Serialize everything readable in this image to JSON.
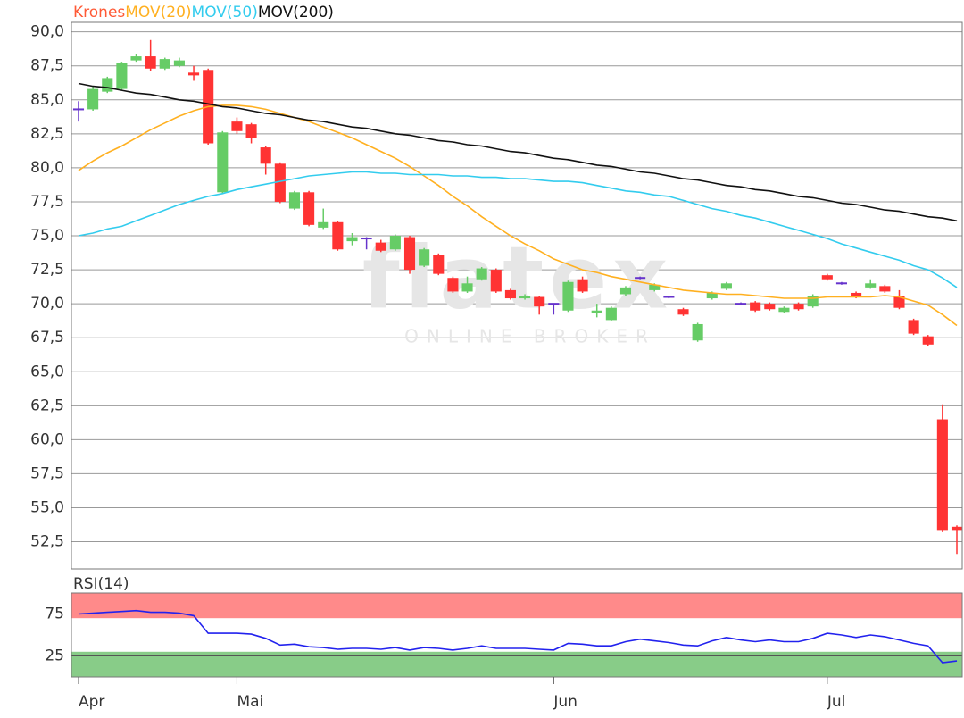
{
  "chart_data": [
    {
      "type": "candlestick",
      "watermark": {
        "logo": "flatex",
        "tagline": "ONLINE BROKER"
      },
      "categories": [
        "Apr",
        null,
        null,
        null,
        null,
        null,
        null,
        null,
        null,
        null,
        null,
        "Mai",
        null,
        null,
        null,
        null,
        null,
        null,
        null,
        null,
        null,
        null,
        null,
        null,
        null,
        null,
        null,
        null,
        null,
        null,
        null,
        null,
        null,
        "Jun",
        null,
        null,
        null,
        null,
        null,
        null,
        null,
        null,
        null,
        null,
        null,
        null,
        null,
        null,
        null,
        null,
        null,
        null,
        "Jul",
        null,
        null,
        null,
        null,
        null,
        null,
        null,
        null,
        null
      ],
      "ylim": [
        50.5,
        90.7
      ],
      "yticks": [
        {
          "value": 52.5,
          "label": "52,5"
        },
        {
          "value": 55,
          "label": "55,0"
        },
        {
          "value": 57.5,
          "label": "57,5"
        },
        {
          "value": 60,
          "label": "60,0"
        },
        {
          "value": 62.5,
          "label": "62,5"
        },
        {
          "value": 65,
          "label": "65,0"
        },
        {
          "value": 67.5,
          "label": "67,5"
        },
        {
          "value": 70,
          "label": "70,0"
        },
        {
          "value": 72.5,
          "label": "72,5"
        },
        {
          "value": 75,
          "label": "75,0"
        },
        {
          "value": 77.5,
          "label": "77,5"
        },
        {
          "value": 80,
          "label": "80,0"
        },
        {
          "value": 82.5,
          "label": "82,5"
        },
        {
          "value": 85,
          "label": "85,0"
        },
        {
          "value": 87.5,
          "label": "87,5"
        },
        {
          "value": 90,
          "label": "90,0"
        }
      ],
      "grid": true,
      "up_color": "#66cc66",
      "down_color": "#ff3333",
      "doji_color": "#6633cc",
      "series": [
        {
          "name": "Krones",
          "color": "#ff5a36",
          "open": [
            84.3,
            84.3,
            85.6,
            85.8,
            87.9,
            88.2,
            87.3,
            87.5,
            87.0,
            87.2,
            78.2,
            83.4,
            83.2,
            81.5,
            80.3,
            77.0,
            78.2,
            75.6,
            76.0,
            74.6,
            74.8,
            74.5,
            74.0,
            74.9,
            72.8,
            73.6,
            71.9,
            70.9,
            71.8,
            72.5,
            71.0,
            70.4,
            70.5,
            70.0,
            69.5,
            71.8,
            69.3,
            68.8,
            70.7,
            71.9,
            71.0,
            70.5,
            69.6,
            67.3,
            70.4,
            71.1,
            70.0,
            70.1,
            70.0,
            69.4,
            70.0,
            69.8,
            72.1,
            71.5,
            70.8,
            71.2,
            71.3,
            70.6,
            68.8,
            67.6,
            61.5,
            53.6
          ],
          "high": [
            84.9,
            86.0,
            86.7,
            87.8,
            88.4,
            89.4,
            88.1,
            88.1,
            87.5,
            87.3,
            82.7,
            83.7,
            83.3,
            81.6,
            80.4,
            78.3,
            78.3,
            77.0,
            76.1,
            75.2,
            74.9,
            74.7,
            75.1,
            75.0,
            74.1,
            73.7,
            72.0,
            72.0,
            72.7,
            72.6,
            71.1,
            70.7,
            70.6,
            70.0,
            71.7,
            72.0,
            70.0,
            69.8,
            71.3,
            72.0,
            71.5,
            70.6,
            69.7,
            68.6,
            70.9,
            71.6,
            70.1,
            70.2,
            70.1,
            69.8,
            70.1,
            70.7,
            72.2,
            71.6,
            70.9,
            71.8,
            71.4,
            71.0,
            68.9,
            67.7,
            62.6,
            53.7
          ],
          "low": [
            83.4,
            84.2,
            85.5,
            85.7,
            87.8,
            87.1,
            87.2,
            87.4,
            86.4,
            81.7,
            78.1,
            82.5,
            81.8,
            79.5,
            77.4,
            76.9,
            75.7,
            75.5,
            73.9,
            74.3,
            74.0,
            73.8,
            73.9,
            72.2,
            72.7,
            72.1,
            70.8,
            70.8,
            71.7,
            70.8,
            70.3,
            70.3,
            69.2,
            69.2,
            69.4,
            70.8,
            69.0,
            68.7,
            70.6,
            71.8,
            70.9,
            70.4,
            69.1,
            67.2,
            70.3,
            71.0,
            69.9,
            69.4,
            69.5,
            69.3,
            69.5,
            69.7,
            71.7,
            71.4,
            70.4,
            71.1,
            70.8,
            69.6,
            67.7,
            66.9,
            53.2,
            51.6
          ],
          "close": [
            84.3,
            85.8,
            86.6,
            87.7,
            88.2,
            87.3,
            88.0,
            87.9,
            86.8,
            81.8,
            82.6,
            82.7,
            82.2,
            80.3,
            77.5,
            78.2,
            75.8,
            76.0,
            74.0,
            74.9,
            74.8,
            73.9,
            75.0,
            72.5,
            74.0,
            72.2,
            70.9,
            71.5,
            72.6,
            70.9,
            70.4,
            70.6,
            69.8,
            70.0,
            71.6,
            70.9,
            69.5,
            69.7,
            71.2,
            71.9,
            71.4,
            70.5,
            69.2,
            68.5,
            70.8,
            71.5,
            70.0,
            69.5,
            69.6,
            69.7,
            69.6,
            70.6,
            71.8,
            71.5,
            70.5,
            71.5,
            70.9,
            69.7,
            67.8,
            67.0,
            53.3,
            53.3
          ]
        },
        {
          "name": "MOV(20)",
          "color": "#ffb020",
          "values": [
            79.8,
            80.5,
            81.1,
            81.6,
            82.2,
            82.8,
            83.3,
            83.8,
            84.2,
            84.5,
            84.6,
            84.6,
            84.5,
            84.3,
            84.0,
            83.7,
            83.4,
            83.0,
            82.6,
            82.2,
            81.7,
            81.2,
            80.7,
            80.1,
            79.4,
            78.7,
            77.9,
            77.2,
            76.4,
            75.7,
            75.0,
            74.4,
            73.9,
            73.3,
            72.9,
            72.5,
            72.3,
            72.0,
            71.8,
            71.6,
            71.4,
            71.2,
            71.0,
            70.9,
            70.8,
            70.7,
            70.7,
            70.6,
            70.5,
            70.4,
            70.4,
            70.4,
            70.5,
            70.5,
            70.5,
            70.5,
            70.6,
            70.5,
            70.2,
            69.9,
            69.2,
            68.4
          ]
        },
        {
          "name": "MOV(50)",
          "color": "#33ccee",
          "values": [
            75.0,
            75.2,
            75.5,
            75.7,
            76.1,
            76.5,
            76.9,
            77.3,
            77.6,
            77.9,
            78.1,
            78.4,
            78.6,
            78.8,
            79.0,
            79.2,
            79.4,
            79.5,
            79.6,
            79.7,
            79.7,
            79.6,
            79.6,
            79.5,
            79.5,
            79.5,
            79.4,
            79.4,
            79.3,
            79.3,
            79.2,
            79.2,
            79.1,
            79.0,
            79.0,
            78.9,
            78.7,
            78.5,
            78.3,
            78.2,
            78.0,
            77.9,
            77.6,
            77.3,
            77.0,
            76.8,
            76.5,
            76.3,
            76.0,
            75.7,
            75.4,
            75.1,
            74.8,
            74.4,
            74.1,
            73.8,
            73.5,
            73.2,
            72.8,
            72.5,
            71.9,
            71.2
          ]
        },
        {
          "name": "MOV(200)",
          "color": "#111111",
          "values": [
            86.2,
            86.0,
            85.9,
            85.7,
            85.5,
            85.4,
            85.2,
            85.0,
            84.9,
            84.7,
            84.5,
            84.4,
            84.2,
            84.0,
            83.9,
            83.7,
            83.5,
            83.4,
            83.2,
            83.0,
            82.9,
            82.7,
            82.5,
            82.4,
            82.2,
            82.0,
            81.9,
            81.7,
            81.6,
            81.4,
            81.2,
            81.1,
            80.9,
            80.7,
            80.6,
            80.4,
            80.2,
            80.1,
            79.9,
            79.7,
            79.6,
            79.4,
            79.2,
            79.1,
            78.9,
            78.7,
            78.6,
            78.4,
            78.3,
            78.1,
            77.9,
            77.8,
            77.6,
            77.4,
            77.3,
            77.1,
            76.9,
            76.8,
            76.6,
            76.4,
            76.3,
            76.1
          ]
        }
      ]
    },
    {
      "type": "line",
      "title": "RSI(14)",
      "color": "#2222ee",
      "ylim": [
        0,
        100
      ],
      "yticks": [
        25,
        75
      ],
      "grid": true,
      "bands": [
        {
          "range": [
            70,
            100
          ],
          "color": "#ff8a8a"
        },
        {
          "range": [
            0,
            30
          ],
          "color": "#88cc88"
        }
      ],
      "values": [
        75,
        76,
        77,
        78,
        79,
        77,
        77,
        76,
        73,
        52,
        52,
        52,
        51,
        46,
        38,
        39,
        36,
        35,
        33,
        34,
        34,
        33,
        35,
        32,
        35,
        34,
        32,
        34,
        37,
        34,
        34,
        34,
        33,
        32,
        40,
        39,
        37,
        37,
        42,
        45,
        43,
        41,
        38,
        37,
        43,
        47,
        44,
        42,
        44,
        42,
        42,
        46,
        52,
        50,
        47,
        50,
        48,
        44,
        40,
        37,
        17,
        19
      ]
    }
  ]
}
